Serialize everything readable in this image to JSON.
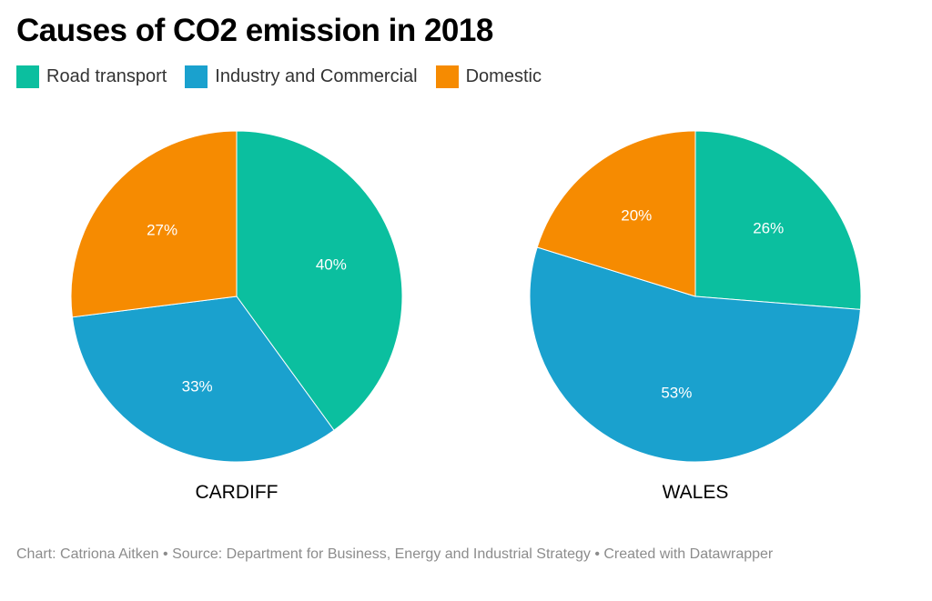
{
  "title": "Causes of CO2 emission in 2018",
  "legend": [
    {
      "label": "Road transport",
      "color": "#0bbf9f"
    },
    {
      "label": "Industry and Commercial",
      "color": "#1aa1ce"
    },
    {
      "label": "Domestic",
      "color": "#f68b01"
    }
  ],
  "chart_data": [
    {
      "type": "pie",
      "title": "CARDIFF",
      "slices": [
        {
          "label": "Road transport",
          "value": 40,
          "display": "40%",
          "color": "#0bbf9f"
        },
        {
          "label": "Industry and Commercial",
          "value": 33,
          "display": "33%",
          "color": "#1aa1ce"
        },
        {
          "label": "Domestic",
          "value": 27,
          "display": "27%",
          "color": "#f68b01"
        }
      ]
    },
    {
      "type": "pie",
      "title": "WALES",
      "slices": [
        {
          "label": "Road transport",
          "value": 26,
          "display": "26%",
          "color": "#0bbf9f"
        },
        {
          "label": "Industry and Commercial",
          "value": 53,
          "display": "53%",
          "color": "#1aa1ce"
        },
        {
          "label": "Domestic",
          "value": 20,
          "display": "20%",
          "color": "#f68b01"
        }
      ]
    }
  ],
  "footer": {
    "chart_label": "Chart:",
    "author": "Catriona Aitken",
    "separator": "•",
    "source_label": "Source:",
    "source": "Department for Business, Energy and Industrial Strategy",
    "created": "Created with Datawrapper"
  }
}
